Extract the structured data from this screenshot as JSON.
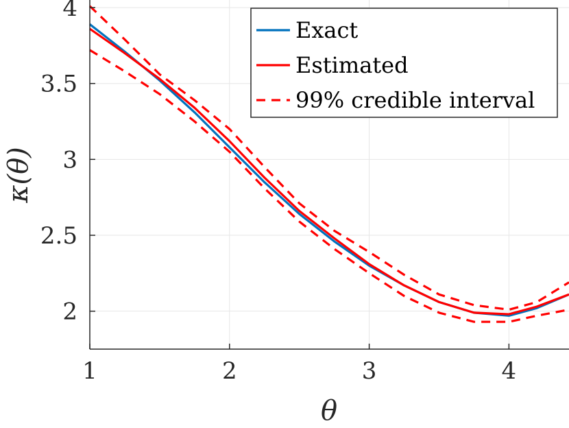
{
  "chart_data": {
    "type": "line",
    "xlabel": "θ",
    "ylabel": "κ(θ)",
    "xlim": [
      1,
      4.43
    ],
    "ylim": [
      1.75,
      4.05
    ],
    "xticks": [
      "1",
      "2",
      "3",
      "4"
    ],
    "yticks": [
      "2",
      "2.5",
      "3",
      "3.5",
      "4"
    ],
    "grid": true,
    "legend_position": "top-right",
    "colors": {
      "exact": "#0072BD",
      "estimated": "#FF0000",
      "interval": "#FF0000"
    },
    "series": [
      {
        "name": "Exact",
        "style": "solid",
        "x": [
          1.0,
          1.25,
          1.5,
          1.75,
          2.0,
          2.25,
          2.5,
          2.75,
          3.0,
          3.25,
          3.5,
          3.75,
          4.0,
          4.2,
          4.43
        ],
        "y": [
          3.89,
          3.71,
          3.52,
          3.31,
          3.08,
          2.85,
          2.64,
          2.46,
          2.3,
          2.17,
          2.06,
          1.99,
          1.97,
          2.02,
          2.11
        ]
      },
      {
        "name": "Estimated",
        "style": "solid",
        "x": [
          1.0,
          1.25,
          1.5,
          1.75,
          2.0,
          2.25,
          2.5,
          2.75,
          3.0,
          3.25,
          3.5,
          3.75,
          4.0,
          4.2,
          4.43
        ],
        "y": [
          3.86,
          3.7,
          3.53,
          3.34,
          3.12,
          2.88,
          2.66,
          2.48,
          2.31,
          2.17,
          2.06,
          1.99,
          1.98,
          2.03,
          2.11
        ]
      },
      {
        "name": "99% credible interval",
        "style": "dashed",
        "x": [
          1.0,
          1.25,
          1.5,
          1.75,
          2.0,
          2.25,
          2.5,
          2.75,
          3.0,
          3.25,
          3.5,
          3.75,
          4.0,
          4.2,
          4.43
        ],
        "y": [
          4.01,
          3.79,
          3.56,
          3.39,
          3.2,
          2.95,
          2.71,
          2.53,
          2.39,
          2.24,
          2.11,
          2.04,
          2.01,
          2.06,
          2.19
        ]
      },
      {
        "name": "",
        "style": "dashed",
        "x": [
          1.0,
          1.25,
          1.5,
          1.75,
          2.0,
          2.25,
          2.5,
          2.75,
          3.0,
          3.25,
          3.5,
          3.75,
          4.0,
          4.2,
          4.43
        ],
        "y": [
          3.72,
          3.58,
          3.43,
          3.25,
          3.05,
          2.81,
          2.59,
          2.41,
          2.25,
          2.1,
          1.99,
          1.93,
          1.93,
          1.97,
          2.01
        ]
      }
    ],
    "legend": [
      {
        "label": "Exact",
        "color": "#0072BD",
        "style": "solid"
      },
      {
        "label": "Estimated",
        "color": "#FF0000",
        "style": "solid"
      },
      {
        "label": "99% credible interval",
        "color": "#FF0000",
        "style": "dashed"
      }
    ]
  }
}
